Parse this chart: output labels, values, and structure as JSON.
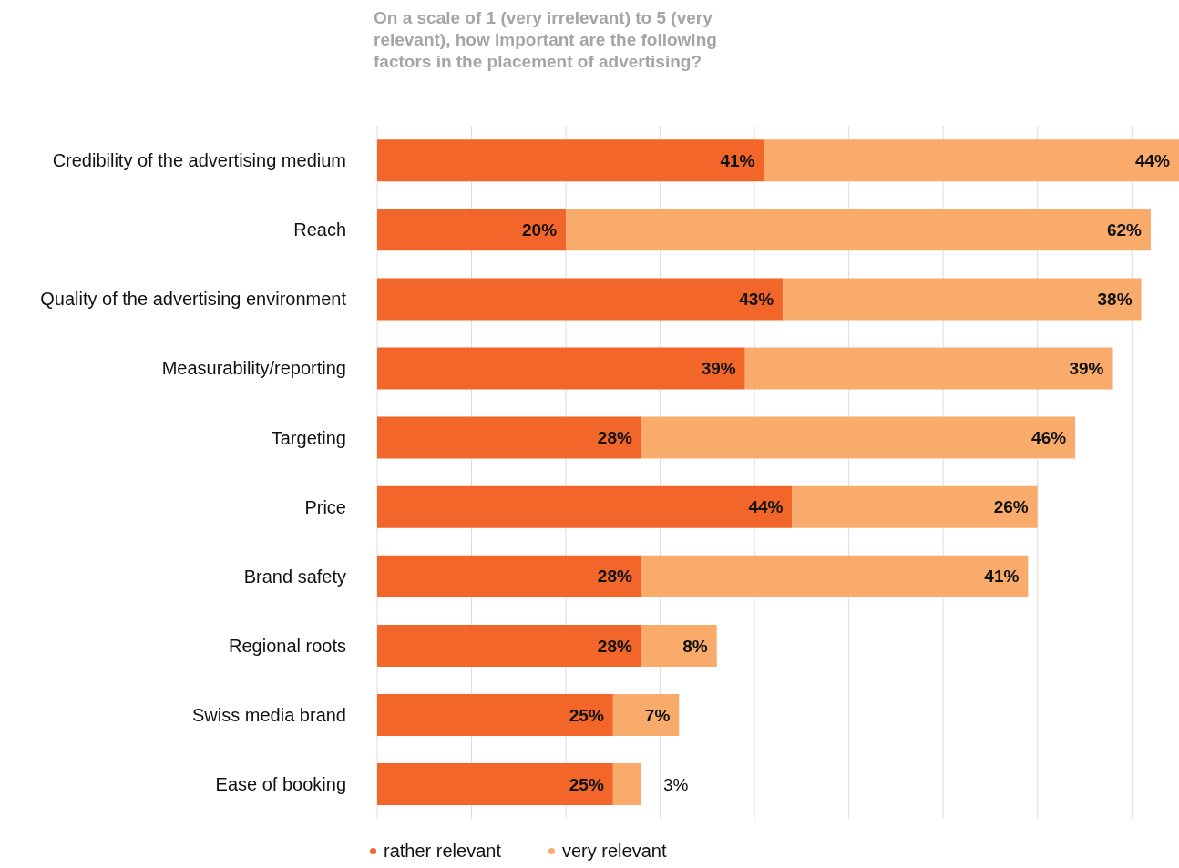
{
  "chart_data": {
    "type": "bar",
    "orientation": "horizontal",
    "stacked": true,
    "title": "On a scale of 1 (very irrelevant) to 5 (very relevant), how important are the following factors in the placement of advertising?",
    "categories": [
      "Credibility of the advertising medium",
      "Reach",
      "Quality of the advertising environment",
      "Measurability/reporting",
      "Targeting",
      "Price",
      "Brand safety",
      "Regional roots",
      "Swiss media brand",
      "Ease of booking"
    ],
    "series": [
      {
        "name": "rather relevant",
        "color": "#f26729",
        "values": [
          41,
          20,
          43,
          39,
          28,
          44,
          28,
          28,
          25,
          25
        ],
        "value_labels": [
          "41%",
          "20%",
          "43%",
          "39%",
          "28%",
          "44%",
          "28%",
          "28%",
          "25%",
          "25%"
        ]
      },
      {
        "name": "very relevant",
        "color": "#f9ab6c",
        "values": [
          44,
          62,
          38,
          39,
          46,
          26,
          41,
          8,
          7,
          3
        ],
        "value_labels": [
          "44%",
          "62%",
          "38%",
          "39%",
          "46%",
          "26%",
          "41%",
          "8%",
          "7%",
          "3%"
        ]
      }
    ],
    "xlim": [
      0,
      85
    ],
    "xticks": [
      {
        "value": 0,
        "label": null
      },
      {
        "value": 10,
        "label": null
      },
      {
        "value": 20,
        "label": null
      },
      {
        "value": 30,
        "label": null
      },
      {
        "value": 40,
        "label": null
      },
      {
        "value": 50,
        "label": null
      },
      {
        "value": 60,
        "label": null
      },
      {
        "value": 70,
        "label": null
      },
      {
        "value": 80,
        "label": null
      }
    ],
    "grid": "x",
    "tick_labels": false,
    "legend": "bottom left"
  }
}
